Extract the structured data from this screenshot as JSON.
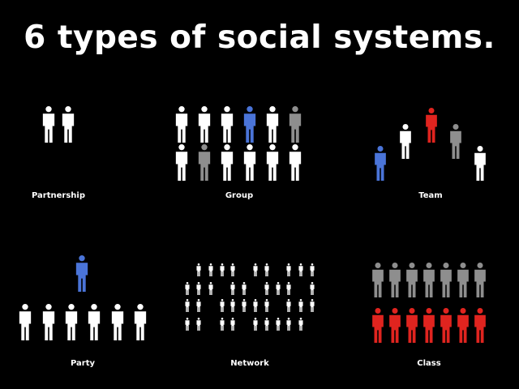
{
  "title": "6 types of social systems.",
  "colors": {
    "background": "#000000",
    "white": "#ffffff",
    "gray": "#8e8e8e",
    "blue": "#4a74d8",
    "red": "#e0241f"
  },
  "groups": [
    {
      "id": "partnership",
      "label": "Partnership",
      "colors": [
        "white",
        "white"
      ]
    },
    {
      "id": "group",
      "label": "Group",
      "colors": [
        "white",
        "white",
        "white",
        "blue",
        "white",
        "gray",
        "white",
        "gray",
        "white",
        "white",
        "white",
        "white"
      ]
    },
    {
      "id": "team",
      "label": "Team",
      "colors": [
        "blue",
        "white",
        "red",
        "gray",
        "white"
      ]
    },
    {
      "id": "party",
      "label": "Party",
      "colors": [
        "blue",
        "white",
        "white",
        "white",
        "white",
        "white",
        "white"
      ]
    },
    {
      "id": "network",
      "label": "Network",
      "color": "white"
    },
    {
      "id": "class",
      "label": "Class",
      "colors": [
        "gray",
        "gray",
        "gray",
        "gray",
        "gray",
        "gray",
        "gray",
        "red",
        "red",
        "red",
        "red",
        "red",
        "red",
        "red"
      ]
    }
  ]
}
